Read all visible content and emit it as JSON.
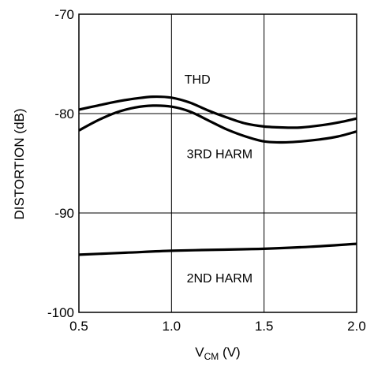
{
  "chart_data": {
    "type": "line",
    "xlabel": {
      "main": "V",
      "sub": "CM",
      "unit": " (V)"
    },
    "ylabel": "DISTORTION (dB)",
    "xlim": [
      0.5,
      2.0
    ],
    "ylim": [
      -100,
      -70
    ],
    "xticks": [
      0.5,
      1.0,
      1.5,
      2.0
    ],
    "xtick_labels": [
      "0.5",
      "1.0",
      "1.5",
      "2.0"
    ],
    "yticks": [
      -100,
      -90,
      -80,
      -70
    ],
    "ytick_labels": [
      "-100",
      "-90",
      "-80",
      "-70"
    ],
    "grid": true,
    "series": [
      {
        "name": "THD",
        "x": [
          0.5,
          0.6,
          0.7,
          0.8,
          0.9,
          1.0,
          1.1,
          1.2,
          1.3,
          1.4,
          1.5,
          1.6,
          1.7,
          1.8,
          1.9,
          2.0
        ],
        "y": [
          -79.6,
          -79.2,
          -78.8,
          -78.5,
          -78.3,
          -78.4,
          -78.9,
          -79.7,
          -80.4,
          -81.0,
          -81.3,
          -81.4,
          -81.4,
          -81.2,
          -80.9,
          -80.5
        ]
      },
      {
        "name": "3RD HARM",
        "x": [
          0.5,
          0.6,
          0.7,
          0.8,
          0.9,
          1.0,
          1.1,
          1.2,
          1.3,
          1.4,
          1.5,
          1.6,
          1.7,
          1.8,
          1.9,
          2.0
        ],
        "y": [
          -81.7,
          -80.7,
          -79.9,
          -79.4,
          -79.2,
          -79.3,
          -79.8,
          -80.7,
          -81.6,
          -82.3,
          -82.8,
          -82.9,
          -82.8,
          -82.6,
          -82.3,
          -81.8
        ]
      },
      {
        "name": "2ND HARM",
        "x": [
          0.5,
          0.75,
          1.0,
          1.25,
          1.5,
          1.75,
          2.0
        ],
        "y": [
          -94.2,
          -94.0,
          -93.8,
          -93.7,
          -93.6,
          -93.4,
          -93.1
        ]
      }
    ],
    "annotations": [
      {
        "text": "THD",
        "x": 1.14,
        "y": -76.5
      },
      {
        "text": "3RD HARM",
        "x": 1.26,
        "y": -84.0
      },
      {
        "text": "2ND HARM",
        "x": 1.26,
        "y": -96.5
      }
    ]
  }
}
